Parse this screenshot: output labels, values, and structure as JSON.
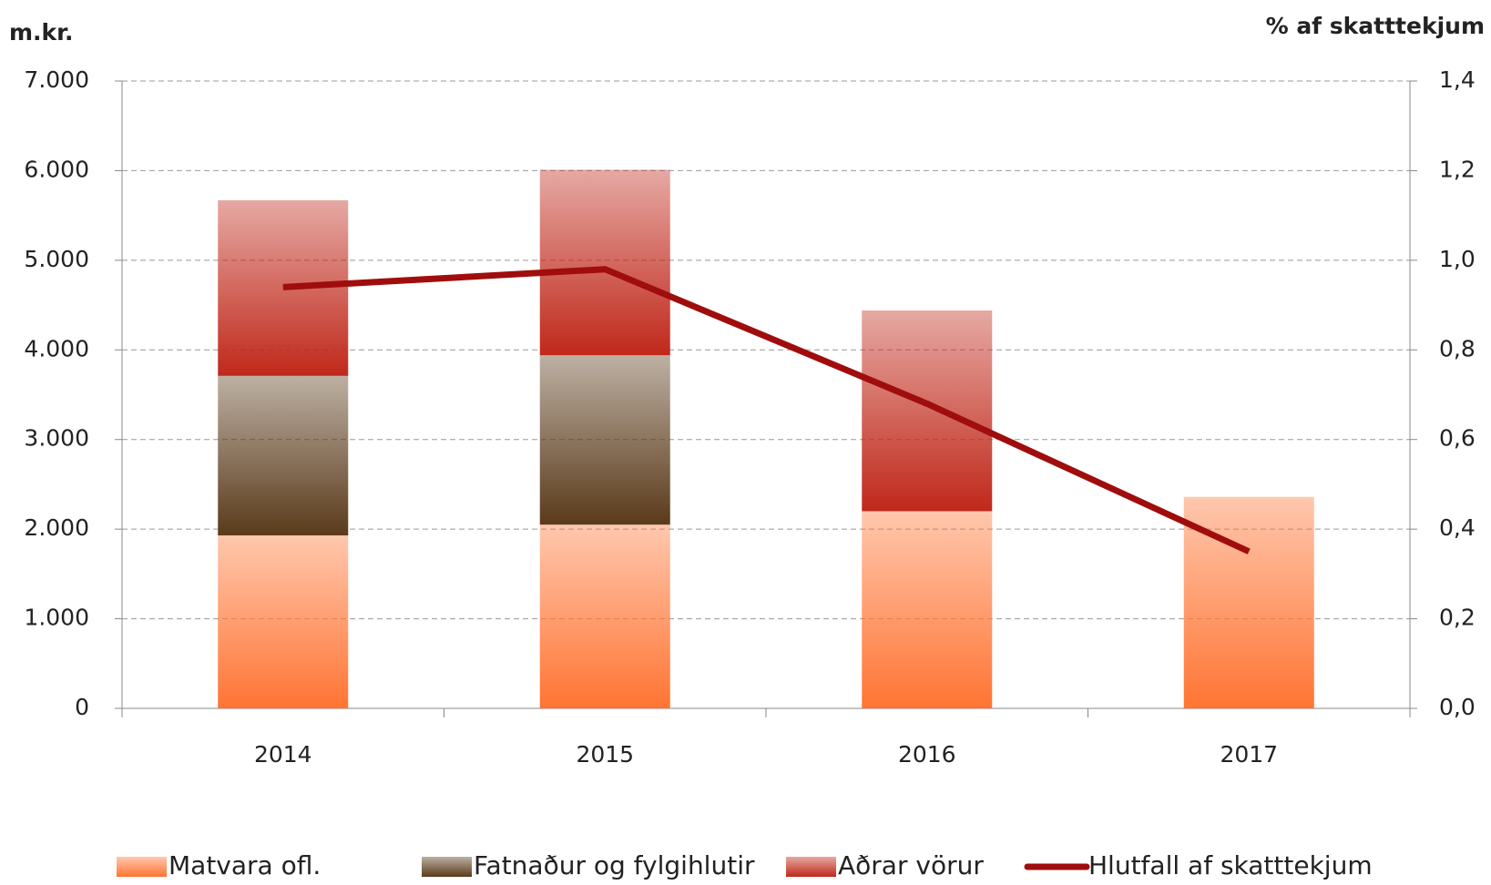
{
  "chart_data": {
    "type": "bar",
    "stacked": true,
    "y_label": "m.kr.",
    "y2_label": "% af skatttekjum",
    "categories": [
      "2014",
      "2015",
      "2016",
      "2017"
    ],
    "series": [
      {
        "name": "Matvara ofl.",
        "color": "#ff7433",
        "values": [
          1930,
          2050,
          2200,
          2360
        ]
      },
      {
        "name": "Fatnaður og fylgihlutir",
        "color": "#5a3a1a",
        "values": [
          1780,
          1890,
          0,
          0
        ]
      },
      {
        "name": "Aðrar vörur",
        "color": "#c0281a",
        "values": [
          1960,
          2070,
          2240,
          0
        ]
      },
      {
        "name": "Hlutfall af skatttekjum",
        "type": "line",
        "axis": "y2",
        "color": "#a00d0d",
        "values": [
          0.94,
          0.98,
          0.68,
          0.35
        ]
      }
    ],
    "ylim": [
      0,
      7000
    ],
    "yticks": [
      {
        "value": 0,
        "label": "0"
      },
      {
        "value": 1000,
        "label": "1.000"
      },
      {
        "value": 2000,
        "label": "2.000"
      },
      {
        "value": 3000,
        "label": "3.000"
      },
      {
        "value": 4000,
        "label": "4.000"
      },
      {
        "value": 5000,
        "label": "5.000"
      },
      {
        "value": 6000,
        "label": "6.000"
      },
      {
        "value": 7000,
        "label": "7.000"
      }
    ],
    "y2lim": [
      0,
      1.4
    ],
    "y2ticks": [
      {
        "value": 0,
        "label": "0,0"
      },
      {
        "value": 0.2,
        "label": "0,2"
      },
      {
        "value": 0.4,
        "label": "0,4"
      },
      {
        "value": 0.6,
        "label": "0,6"
      },
      {
        "value": 0.8,
        "label": "0,8"
      },
      {
        "value": 1,
        "label": "1,0"
      },
      {
        "value": 1.2,
        "label": "1,2"
      },
      {
        "value": 1.4,
        "label": "1,4"
      }
    ],
    "grid": true,
    "legend": "bottom"
  }
}
